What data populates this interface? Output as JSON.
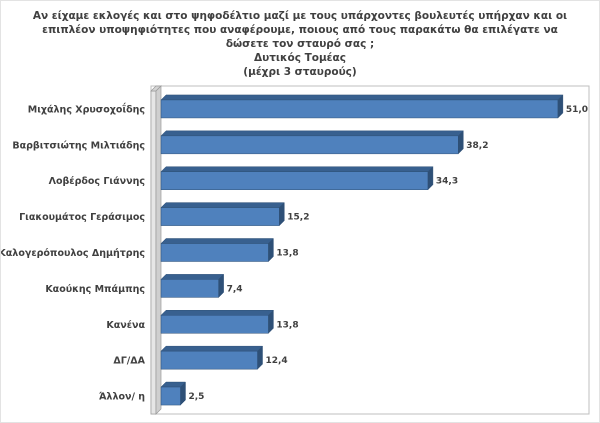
{
  "chart_data": {
    "type": "bar",
    "orientation": "horizontal",
    "style": "3d-horizontal-bar",
    "title": "Αν είχαμε εκλογές και στο ψηφοδέλτιο μαζί με τους υπάρχοντες βουλευτές υπήρχαν και οι επιπλέον υποψηφιότητες που αναφέρουμε, ποιους από τους παρακάτω θα επιλέγατε να δώσετε τον σταυρό σας ;",
    "subtitle": "Δυτικός Τομέας",
    "note": "(μέχρι 3 σταυρούς)",
    "categories": [
      "Μιχάλης Χρυσοχοΐδης",
      "Βαρβιτσιώτης Μιλτιάδης",
      "Λοβέρδος Γιάννης",
      "Γιακουμάτος Γεράσιμος",
      "Καλογερόπουλος Δημήτρης",
      "Καούκης Μπάμπης",
      "Κανένα",
      "ΔΓ/ΔΑ",
      "Άλλον/ η"
    ],
    "values": [
      51.0,
      38.2,
      34.3,
      15.2,
      13.8,
      7.4,
      13.8,
      12.4,
      2.5
    ],
    "value_labels": [
      "51,0",
      "38,2",
      "34,3",
      "15,2",
      "13,8",
      "7,4",
      "13,8",
      "12,4",
      "2,5"
    ],
    "xlim": [
      0,
      55
    ],
    "grid": false,
    "legend": "none",
    "colors": {
      "bar_front": "#4F81BD",
      "bar_top": "#38608F",
      "bar_side": "#2E5077",
      "bar_edge": "#2E5077",
      "wall_fill": "#E6E6E6",
      "wall_top": "#D4D4D4",
      "wall_side": "#CFCFCF",
      "wall_edge": "#9A9A9A",
      "plot_border": "#BFBFBF",
      "text": "#404040",
      "background": "#FFFFFF"
    }
  }
}
